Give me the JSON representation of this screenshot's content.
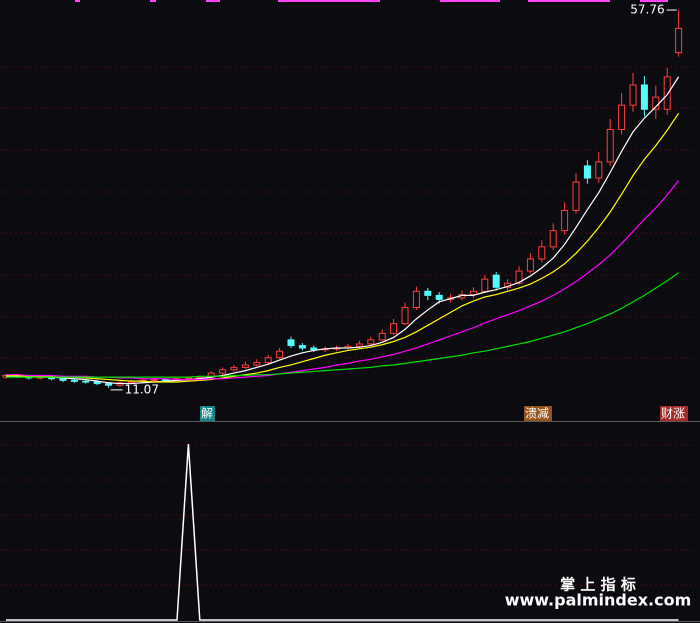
{
  "chart_data": [
    {
      "type": "candlestick",
      "up_color": "#ff3c3c",
      "down_color": "#54fcfc",
      "open": [
        12.4,
        12.6,
        12.5,
        12.3,
        12.4,
        12.2,
        12.0,
        11.9,
        11.8,
        11.6,
        11.4,
        11.7,
        11.9,
        12.0,
        12.1,
        12.0,
        12.2,
        12.3,
        12.4,
        12.9,
        13.3,
        13.6,
        13.9,
        14.2,
        14.8,
        17.0,
        16.3,
        16.0,
        15.8,
        15.9,
        16.0,
        16.2,
        16.5,
        17.0,
        17.8,
        19.0,
        21.0,
        23.0,
        22.5,
        22.0,
        22.2,
        22.6,
        23.0,
        25.0,
        23.5,
        24.0,
        25.5,
        27.0,
        28.5,
        30.5,
        33.0,
        38.5,
        37.0,
        39.0,
        43.0,
        46.0,
        48.5,
        45.5,
        45.5,
        52.5
      ],
      "close": [
        12.6,
        12.5,
        12.3,
        12.4,
        12.2,
        12.0,
        11.9,
        11.8,
        11.6,
        11.4,
        11.7,
        11.9,
        12.0,
        12.1,
        12.0,
        12.2,
        12.3,
        12.4,
        12.9,
        13.3,
        13.6,
        13.9,
        14.2,
        14.8,
        15.6,
        16.3,
        16.0,
        15.8,
        15.9,
        16.0,
        16.2,
        16.5,
        17.0,
        17.8,
        19.0,
        21.0,
        23.0,
        22.5,
        22.0,
        22.2,
        22.6,
        23.0,
        24.5,
        23.5,
        24.0,
        25.5,
        27.0,
        28.5,
        30.5,
        33.0,
        36.5,
        37.0,
        39.0,
        43.0,
        46.0,
        48.5,
        45.5,
        47.0,
        49.5,
        55.5
      ],
      "high": [
        12.8,
        12.8,
        12.7,
        12.6,
        12.5,
        12.4,
        12.2,
        12.1,
        12.0,
        11.8,
        11.9,
        12.1,
        12.2,
        12.3,
        12.3,
        12.4,
        12.5,
        12.6,
        13.1,
        13.6,
        13.9,
        14.3,
        14.6,
        15.2,
        16.0,
        17.4,
        16.6,
        16.3,
        16.2,
        16.3,
        16.5,
        16.9,
        17.4,
        18.3,
        19.6,
        21.6,
        23.6,
        23.4,
        22.9,
        22.7,
        23.1,
        23.5,
        25.0,
        25.4,
        24.5,
        26.1,
        27.7,
        29.3,
        31.4,
        34.0,
        37.6,
        39.2,
        40.2,
        44.3,
        47.5,
        50.0,
        49.6,
        48.4,
        50.6,
        57.76
      ],
      "low": [
        12.2,
        12.3,
        12.1,
        12.1,
        12.0,
        11.8,
        11.7,
        11.6,
        11.4,
        11.07,
        11.2,
        11.5,
        11.7,
        11.8,
        11.8,
        11.9,
        12.0,
        12.1,
        12.2,
        12.7,
        13.1,
        13.4,
        13.7,
        14.0,
        14.6,
        16.0,
        15.7,
        15.5,
        15.5,
        15.6,
        15.8,
        16.0,
        16.3,
        16.8,
        17.6,
        18.8,
        20.7,
        21.9,
        21.5,
        21.6,
        21.9,
        22.2,
        22.8,
        23.1,
        23.1,
        23.8,
        25.2,
        26.6,
        28.1,
        30.0,
        32.6,
        36.3,
        36.4,
        38.5,
        42.4,
        45.2,
        44.6,
        44.3,
        44.8,
        52.0
      ],
      "series": [
        {
          "color": "#ffffff",
          "values": [
            12.5,
            12.5,
            12.5,
            12.4,
            12.4,
            12.3,
            12.2,
            12.1,
            11.9,
            11.7,
            11.6,
            11.6,
            11.7,
            11.8,
            11.9,
            12.0,
            12.1,
            12.2,
            12.4,
            12.6,
            12.9,
            13.2,
            13.6,
            14.0,
            14.5,
            15.0,
            15.4,
            15.7,
            15.9,
            16.0,
            16.0,
            16.1,
            16.3,
            16.7,
            17.3,
            18.3,
            19.6,
            20.7,
            21.7,
            22.1,
            22.5,
            22.5,
            22.9,
            23.2,
            23.6,
            24.1,
            24.9,
            25.9,
            27.1,
            28.8,
            30.9,
            33.1,
            35.2,
            37.7,
            40.3,
            42.7,
            44.4,
            45.8,
            47.3,
            49.5
          ]
        },
        {
          "color": "#ffff00",
          "values": [
            12.6,
            12.6,
            12.5,
            12.5,
            12.5,
            12.4,
            12.4,
            12.3,
            12.2,
            12.1,
            12.0,
            11.9,
            11.9,
            11.8,
            11.8,
            11.8,
            11.9,
            12.0,
            12.1,
            12.3,
            12.5,
            12.7,
            12.9,
            13.2,
            13.6,
            13.9,
            14.3,
            14.7,
            15.1,
            15.4,
            15.7,
            15.9,
            16.1,
            16.4,
            16.8,
            17.3,
            18.0,
            18.8,
            19.6,
            20.4,
            21.2,
            21.8,
            22.3,
            22.6,
            23.0,
            23.4,
            23.9,
            24.6,
            25.4,
            26.4,
            27.7,
            29.2,
            30.9,
            32.8,
            35.0,
            37.3,
            39.3,
            41.0,
            42.9,
            45.0
          ]
        },
        {
          "color": "#ff00ff",
          "values": [
            12.7,
            12.7,
            12.6,
            12.6,
            12.6,
            12.5,
            12.5,
            12.5,
            12.4,
            12.4,
            12.3,
            12.3,
            12.2,
            12.2,
            12.2,
            12.1,
            12.1,
            12.1,
            12.2,
            12.2,
            12.3,
            12.4,
            12.5,
            12.6,
            12.8,
            13.0,
            13.2,
            13.4,
            13.6,
            13.9,
            14.1,
            14.4,
            14.6,
            14.9,
            15.2,
            15.6,
            16.0,
            16.5,
            17.0,
            17.5,
            18.0,
            18.5,
            19.1,
            19.6,
            20.1,
            20.6,
            21.2,
            21.8,
            22.5,
            23.3,
            24.2,
            25.2,
            26.3,
            27.5,
            28.9,
            30.4,
            31.9,
            33.3,
            34.9,
            36.7
          ]
        },
        {
          "color": "#00e000",
          "values": [
            12.4,
            12.4,
            12.4,
            12.4,
            12.4,
            12.4,
            12.4,
            12.4,
            12.4,
            12.4,
            12.4,
            12.4,
            12.4,
            12.4,
            12.4,
            12.4,
            12.4,
            12.5,
            12.5,
            12.5,
            12.6,
            12.6,
            12.7,
            12.7,
            12.8,
            12.9,
            13.0,
            13.1,
            13.2,
            13.3,
            13.4,
            13.5,
            13.6,
            13.8,
            13.9,
            14.1,
            14.3,
            14.5,
            14.7,
            14.9,
            15.1,
            15.4,
            15.6,
            15.9,
            16.2,
            16.5,
            16.8,
            17.2,
            17.6,
            18.0,
            18.5,
            19.0,
            19.6,
            20.2,
            20.9,
            21.7,
            22.5,
            23.4,
            24.3,
            25.3
          ]
        }
      ],
      "ylim": [
        7.1,
        59.0
      ],
      "signals": [
        {
          "label": "解",
          "color": "#1a9a9a"
        },
        {
          "label": "溃减",
          "color": "#b0601e"
        },
        {
          "label": "财涨",
          "color": "#c03030"
        }
      ]
    },
    {
      "type": "line",
      "color": "#ffffff",
      "values": [
        0,
        0,
        0,
        0,
        0,
        0,
        0,
        0,
        0,
        0,
        0,
        0,
        0,
        0,
        0,
        0,
        1,
        0,
        0,
        0,
        0,
        0,
        0,
        0,
        0,
        0,
        0,
        0,
        0,
        0,
        0,
        0,
        0,
        0,
        0,
        0,
        0,
        0,
        0,
        0,
        0,
        0,
        0,
        0,
        0,
        0,
        0,
        0,
        0,
        0,
        0,
        0,
        0,
        0,
        0,
        0,
        0,
        0,
        0,
        0
      ],
      "ylim": [
        0,
        1.125
      ]
    }
  ],
  "watermark": {
    "line1": "掌 上 指 标",
    "line2": "www.palmindex.com"
  }
}
